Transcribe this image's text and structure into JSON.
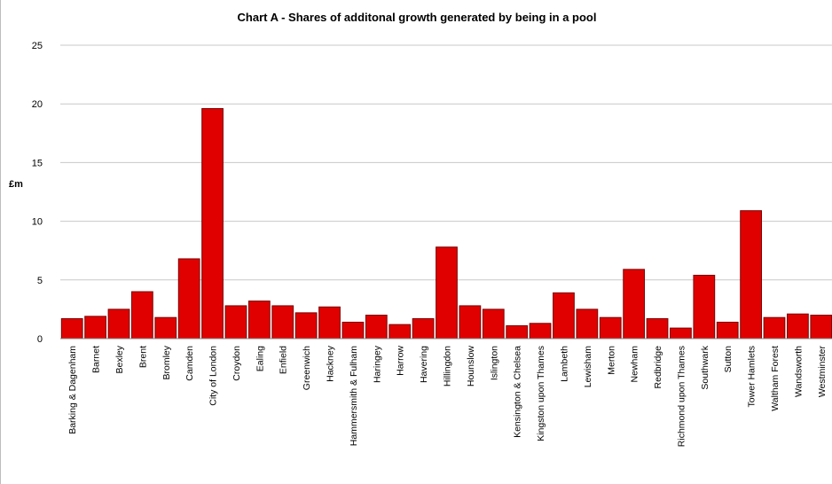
{
  "chart_data": {
    "type": "bar",
    "title": "Chart A - Shares of additonal growth generated by being in a pool",
    "xlabel": "",
    "ylabel": "£m",
    "ylim": [
      0,
      25
    ],
    "yticks": [
      0,
      5,
      10,
      15,
      20,
      25
    ],
    "grid": true,
    "legend": "none",
    "bar_color": "#e00000",
    "categories": [
      "Barking & Dagenham",
      "Barnet",
      "Bexley",
      "Brent",
      "Bromley",
      "Camden",
      "City of London",
      "Croydon",
      "Ealing",
      "Enfield",
      "Greenwich",
      "Hackney",
      "Hammersmith & Fulham",
      "Haringey",
      "Harrow",
      "Havering",
      "Hillingdon",
      "Hounslow",
      "Islington",
      "Kensington & Chelsea",
      "Kingston upon Thames",
      "Lambeth",
      "Lewisham",
      "Merton",
      "Newham",
      "Redbridge",
      "Richmond upon Thames",
      "Southwark",
      "Sutton",
      "Tower Hamlets",
      "Waltham Forest",
      "Wandsworth",
      "Westminster"
    ],
    "values": [
      1.7,
      1.9,
      2.5,
      4.0,
      1.8,
      6.8,
      19.6,
      2.8,
      3.2,
      2.8,
      2.2,
      2.7,
      1.4,
      2.0,
      1.2,
      1.7,
      7.8,
      2.8,
      2.5,
      1.1,
      1.3,
      3.9,
      2.5,
      1.8,
      5.9,
      1.7,
      0.9,
      5.4,
      1.4,
      10.9,
      1.8,
      2.1,
      2.0
    ]
  }
}
